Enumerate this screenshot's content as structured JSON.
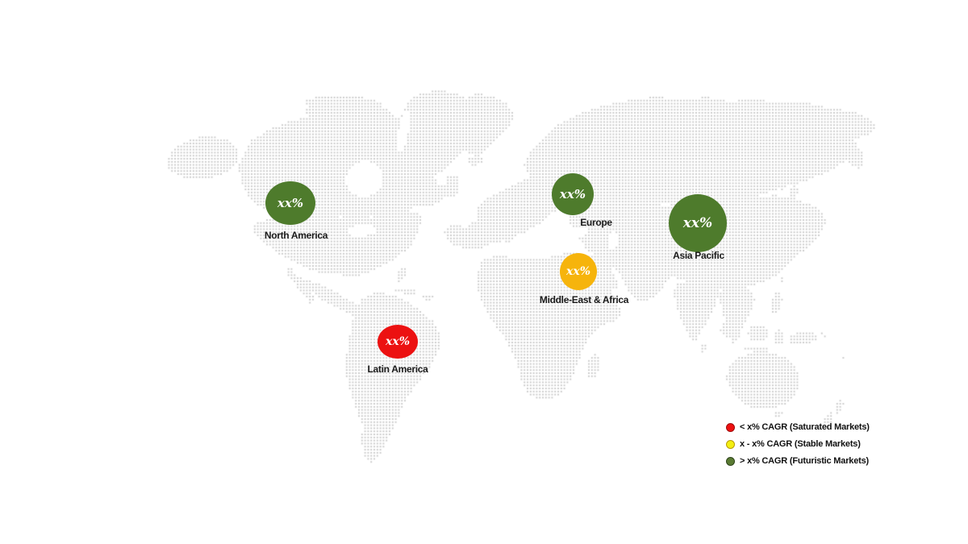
{
  "map": {
    "dot_color": "#c9c9c9",
    "background": "#ffffff",
    "regions": [
      {
        "id": "north-america",
        "name": "North America",
        "value": "xx%",
        "color": "#4e7b2c",
        "market_type": "Futuristic Markets"
      },
      {
        "id": "latin-america",
        "name": "Latin America",
        "value": "xx%",
        "color": "#ec1111",
        "market_type": "Saturated Markets"
      },
      {
        "id": "europe",
        "name": "Europe",
        "value": "xx%",
        "color": "#4e7b2c",
        "market_type": "Futuristic Markets"
      },
      {
        "id": "middle-east-africa",
        "name": "Middle-East & Africa",
        "value": "xx%",
        "color": "#f6b40c",
        "market_type": "Stable Markets"
      },
      {
        "id": "asia-pacific",
        "name": "Asia Pacific",
        "value": "xx%",
        "color": "#4e7b2c",
        "market_type": "Futuristic Markets"
      }
    ]
  },
  "legend": {
    "items": [
      {
        "label": "< x% CAGR (Saturated Markets)",
        "marker_color": "#ee1111"
      },
      {
        "label": "x - x% CAGR (Stable Markets)",
        "marker_color": "#f3ef12"
      },
      {
        "label": "> x% CAGR (Futuristic Markets)",
        "marker_color": "#5a7b33"
      }
    ]
  }
}
